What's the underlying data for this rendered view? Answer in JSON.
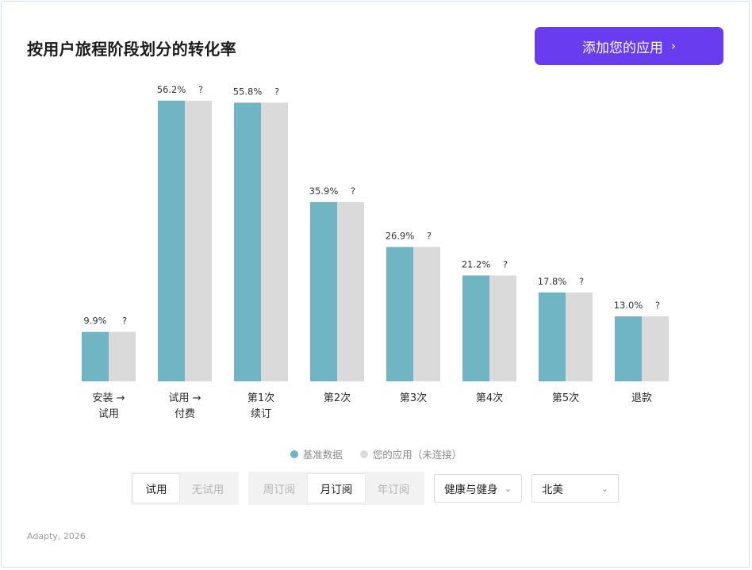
{
  "title": "按用户旅程阶段划分的转化率",
  "cta": {
    "label": "添加您的应用",
    "icon": "chevron-right-icon"
  },
  "chart_data": {
    "type": "bar",
    "categories": [
      [
        "安装 →",
        "试用"
      ],
      [
        "试用 →",
        "付费"
      ],
      [
        "第1次",
        "续订"
      ],
      [
        "第2次"
      ],
      [
        "第3次"
      ],
      [
        "第4次"
      ],
      [
        "第5次"
      ],
      [
        "退款"
      ]
    ],
    "series": [
      {
        "name": "基准数据",
        "color": "#6fb5c4",
        "values": [
          9.9,
          56.2,
          55.8,
          35.9,
          26.9,
          21.2,
          17.8,
          13.0
        ],
        "labels": [
          "9.9%",
          "56.2%",
          "55.8%",
          "35.9%",
          "26.9%",
          "21.2%",
          "17.8%",
          "13.0%"
        ]
      },
      {
        "name": "您的应用（未连接）",
        "color": "#dadada",
        "values": [
          9.9,
          56.2,
          55.8,
          35.9,
          26.9,
          21.2,
          17.8,
          13.0
        ],
        "labels": [
          "?",
          "?",
          "?",
          "?",
          "?",
          "?",
          "?",
          "?"
        ]
      }
    ],
    "ylim": [
      0,
      56.2
    ],
    "grid": false,
    "legend_position": "bottom"
  },
  "filters": {
    "trial_group": {
      "options": [
        "试用",
        "无试用"
      ],
      "selected": "试用"
    },
    "subscription_group": {
      "options": [
        "周订阅",
        "月订阅",
        "年订阅"
      ],
      "selected": "月订阅"
    },
    "category_select": {
      "value": "健康与健身",
      "icon": "chevron-down-icon"
    },
    "region_select": {
      "value": "北美",
      "icon": "chevron-down-icon"
    }
  },
  "footer": "Adapty, 2026"
}
